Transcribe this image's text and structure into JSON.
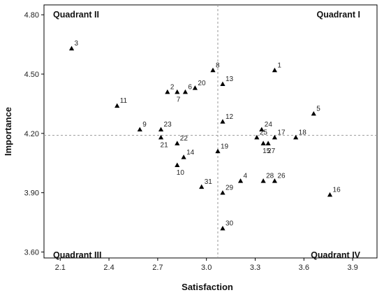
{
  "chart_data": {
    "type": "scatter",
    "xlabel": "Satisfaction",
    "ylabel": "Importance",
    "xlim": [
      2.0,
      4.05
    ],
    "ylim": [
      3.57,
      4.85
    ],
    "xticks": [
      2.1,
      2.4,
      2.7,
      3.0,
      3.3,
      3.6,
      3.9
    ],
    "xtick_labels": [
      "2.1",
      "2.4",
      "2.7",
      "3.0",
      "3.3",
      "3.6",
      "3.9"
    ],
    "yticks": [
      3.6,
      3.9,
      4.2,
      4.5,
      4.8
    ],
    "ytick_labels": [
      "3.60",
      "3.90",
      "4.20",
      "4.50",
      "4.80"
    ],
    "reference_lines": {
      "x": 3.07,
      "y": 4.19
    },
    "quadrants": {
      "top_left": "Quadrant II",
      "top_right": "Quadrant I",
      "bottom_left": "Quadrant III",
      "bottom_right": "Quadrant IV"
    },
    "marker": "triangle",
    "marker_color": "#000000",
    "grid": false,
    "points": [
      {
        "label": "1",
        "x": 3.42,
        "y": 4.52
      },
      {
        "label": "2",
        "x": 2.76,
        "y": 4.41
      },
      {
        "label": "3",
        "x": 2.17,
        "y": 4.63
      },
      {
        "label": "4",
        "x": 3.21,
        "y": 3.96
      },
      {
        "label": "5",
        "x": 3.66,
        "y": 4.3
      },
      {
        "label": "6",
        "x": 2.87,
        "y": 4.41
      },
      {
        "label": "7",
        "x": 2.82,
        "y": 4.41
      },
      {
        "label": "8",
        "x": 3.04,
        "y": 4.52
      },
      {
        "label": "9",
        "x": 2.59,
        "y": 4.22
      },
      {
        "label": "10",
        "x": 2.82,
        "y": 4.04
      },
      {
        "label": "11",
        "x": 2.45,
        "y": 4.34
      },
      {
        "label": "12",
        "x": 3.1,
        "y": 4.26
      },
      {
        "label": "13",
        "x": 3.1,
        "y": 4.45
      },
      {
        "label": "14",
        "x": 2.86,
        "y": 4.08
      },
      {
        "label": "15",
        "x": 3.35,
        "y": 4.15
      },
      {
        "label": "16",
        "x": 3.76,
        "y": 3.89
      },
      {
        "label": "17",
        "x": 3.42,
        "y": 4.18
      },
      {
        "label": "18",
        "x": 3.55,
        "y": 4.18
      },
      {
        "label": "19",
        "x": 3.07,
        "y": 4.11
      },
      {
        "label": "20",
        "x": 2.93,
        "y": 4.43
      },
      {
        "label": "21",
        "x": 2.72,
        "y": 4.18
      },
      {
        "label": "22",
        "x": 2.82,
        "y": 4.15
      },
      {
        "label": "23",
        "x": 2.72,
        "y": 4.22
      },
      {
        "label": "24",
        "x": 3.34,
        "y": 4.22
      },
      {
        "label": "25",
        "x": 3.31,
        "y": 4.18
      },
      {
        "label": "26",
        "x": 3.42,
        "y": 3.96
      },
      {
        "label": "27",
        "x": 3.38,
        "y": 4.15
      },
      {
        "label": "28",
        "x": 3.35,
        "y": 3.96
      },
      {
        "label": "29",
        "x": 3.1,
        "y": 3.9
      },
      {
        "label": "30",
        "x": 3.1,
        "y": 3.72
      },
      {
        "label": "31",
        "x": 2.97,
        "y": 3.93
      }
    ]
  }
}
